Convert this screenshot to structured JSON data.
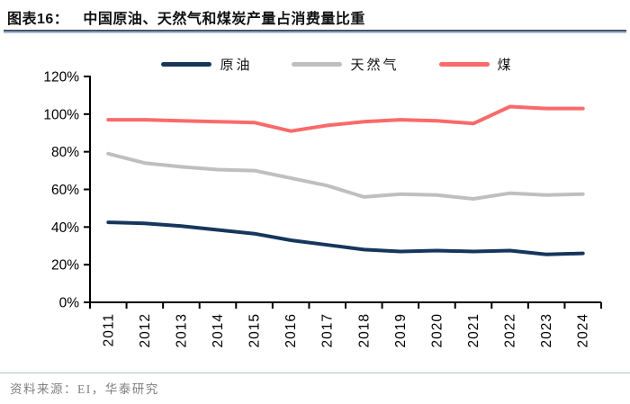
{
  "page": {
    "title_prefix": "图表16：",
    "title": "中国原油、天然气和煤炭产量占消费量比重",
    "source": "资料来源：EI，华泰研究"
  },
  "chart_data": {
    "type": "line",
    "title": "中国原油、天然气和煤炭产量占消费量比重",
    "categories": [
      "2011",
      "2012",
      "2013",
      "2014",
      "2015",
      "2016",
      "2017",
      "2018",
      "2019",
      "2020",
      "2021",
      "2022",
      "2023",
      "2024"
    ],
    "series": [
      {
        "id": "crude-oil",
        "name": "原油",
        "color": "#17365D",
        "values": [
          42.5,
          42,
          40.5,
          38.5,
          36.5,
          33,
          30.5,
          28,
          27,
          27.5,
          27,
          27.5,
          25.5,
          26
        ]
      },
      {
        "id": "natural-gas",
        "name": "天然气",
        "color": "#BFBFBF",
        "values": [
          79,
          74,
          72,
          70.5,
          70,
          66,
          62,
          56,
          57.5,
          57,
          55,
          58,
          57,
          57.5
        ]
      },
      {
        "id": "coal",
        "name": "煤",
        "color": "#FA6A6A",
        "values": [
          97,
          97,
          96.5,
          96,
          95.5,
          91,
          94,
          96,
          97,
          96.5,
          95,
          104,
          103,
          103
        ]
      }
    ],
    "xlabel": "",
    "ylabel": "",
    "ylim": [
      0,
      120
    ],
    "ytick_step": 20,
    "ytick_labels": [
      "0%",
      "20%",
      "40%",
      "60%",
      "80%",
      "100%",
      "120%"
    ],
    "grid": false,
    "legend_position": "top",
    "axis_color": "#000000"
  }
}
